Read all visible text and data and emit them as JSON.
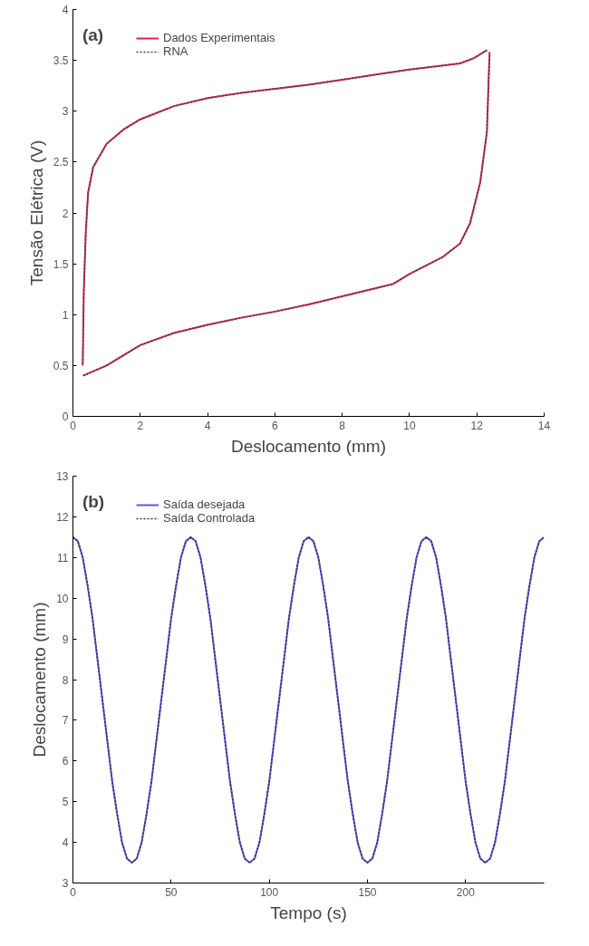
{
  "chart_data": [
    {
      "type": "line",
      "title": "(a)",
      "xlabel": "Deslocamento (mm)",
      "ylabel": "Tensão Elétrica (V)",
      "xlim": [
        0,
        14
      ],
      "xticks": [
        0,
        2,
        4,
        6,
        8,
        10,
        12,
        14
      ],
      "ylim": [
        0,
        4
      ],
      "yticks": [
        0,
        0.5,
        1,
        1.5,
        2,
        2.5,
        3,
        3.5,
        4
      ],
      "grid": false,
      "legend": "top left",
      "series": [
        {
          "name": "Dados Experimentais",
          "color": "#e0204a",
          "line_style": "solid",
          "x": [
            0.3,
            1,
            2,
            3,
            4,
            5,
            6,
            7,
            8,
            9,
            9.5,
            10,
            11,
            11.5,
            11.8,
            12.1,
            12.3,
            12.35,
            12.38
          ],
          "values": [
            0.4,
            0.5,
            0.7,
            0.82,
            0.9,
            0.97,
            1.03,
            1.1,
            1.18,
            1.26,
            1.3,
            1.4,
            1.57,
            1.7,
            1.9,
            2.3,
            2.8,
            3.3,
            3.58
          ]
        },
        {
          "color": "#e0204a",
          "line_style": "solid",
          "x": [
            12.3,
            11.9,
            11.5,
            11,
            10,
            9,
            8,
            7,
            6,
            5,
            4,
            3,
            2,
            1.5,
            1,
            0.6,
            0.45,
            0.38,
            0.32,
            0.3,
            0.29
          ],
          "values": [
            3.6,
            3.52,
            3.47,
            3.45,
            3.41,
            3.36,
            3.31,
            3.26,
            3.22,
            3.18,
            3.13,
            3.05,
            2.92,
            2.82,
            2.68,
            2.45,
            2.2,
            1.8,
            1.2,
            0.7,
            0.5
          ]
        },
        {
          "name": "RNA",
          "color": "#444444",
          "line_style": "dotted",
          "x": [
            0.3,
            1,
            2,
            3,
            4,
            5,
            6,
            7,
            8,
            9,
            9.5,
            10,
            11,
            11.5,
            11.8,
            12.1,
            12.3,
            12.35,
            12.38
          ],
          "values": [
            0.4,
            0.5,
            0.7,
            0.82,
            0.9,
            0.97,
            1.03,
            1.1,
            1.18,
            1.26,
            1.3,
            1.4,
            1.57,
            1.7,
            1.9,
            2.3,
            2.8,
            3.3,
            3.58
          ]
        },
        {
          "color": "#444444",
          "line_style": "dotted",
          "x": [
            12.3,
            11.9,
            11.5,
            11,
            10,
            9,
            8,
            7,
            6,
            5,
            4,
            3,
            2,
            1.5,
            1,
            0.6,
            0.45,
            0.38,
            0.32,
            0.3,
            0.29
          ],
          "values": [
            3.6,
            3.52,
            3.47,
            3.45,
            3.41,
            3.36,
            3.31,
            3.26,
            3.22,
            3.18,
            3.13,
            3.05,
            2.92,
            2.82,
            2.68,
            2.45,
            2.2,
            1.8,
            1.2,
            0.7,
            0.5
          ]
        }
      ]
    },
    {
      "type": "line",
      "title": "(b)",
      "xlabel": "Tempo (s)",
      "ylabel": "Deslocamento (mm)",
      "xlim": [
        0,
        240
      ],
      "xticks": [
        0,
        50,
        100,
        150,
        200
      ],
      "ylim": [
        3,
        13
      ],
      "yticks": [
        3,
        4,
        5,
        6,
        7,
        8,
        9,
        10,
        11,
        12,
        13
      ],
      "grid": false,
      "legend": "top left",
      "x": [
        0,
        2.5,
        5,
        7.5,
        10,
        12.5,
        15,
        17.5,
        20,
        22.5,
        25,
        27.5,
        30,
        32.5,
        35,
        37.5,
        40,
        42.5,
        45,
        47.5,
        50,
        52.5,
        55,
        57.5,
        60,
        62.5,
        65,
        67.5,
        70,
        72.5,
        75,
        77.5,
        80,
        82.5,
        85,
        87.5,
        90,
        92.5,
        95,
        97.5,
        100,
        102.5,
        105,
        107.5,
        110,
        112.5,
        115,
        117.5,
        120,
        122.5,
        125,
        127.5,
        130,
        132.5,
        135,
        137.5,
        140,
        142.5,
        145,
        147.5,
        150,
        152.5,
        155,
        157.5,
        160,
        162.5,
        165,
        167.5,
        170,
        172.5,
        175,
        177.5,
        180,
        182.5,
        185,
        187.5,
        190,
        192.5,
        195,
        197.5,
        200,
        202.5,
        205,
        207.5,
        210,
        212.5,
        215,
        217.5,
        220,
        222.5,
        225,
        227.5,
        230,
        232.5,
        235,
        237.5,
        240
      ],
      "series": [
        {
          "name": "Saída desejada",
          "color": "#6a50d8",
          "line_style": "solid",
          "values": [
            11.5,
            11.4,
            11.0,
            10.3,
            9.5,
            8.5,
            7.5,
            6.5,
            5.5,
            4.7,
            4.0,
            3.6,
            3.5,
            3.6,
            4.0,
            4.7,
            5.5,
            6.5,
            7.5,
            8.5,
            9.5,
            10.3,
            11.0,
            11.4,
            11.5,
            11.4,
            11.0,
            10.3,
            9.5,
            8.5,
            7.5,
            6.5,
            5.5,
            4.7,
            4.0,
            3.6,
            3.5,
            3.6,
            4.0,
            4.7,
            5.5,
            6.5,
            7.5,
            8.5,
            9.5,
            10.3,
            11.0,
            11.4,
            11.5,
            11.4,
            11.0,
            10.3,
            9.5,
            8.5,
            7.5,
            6.5,
            5.5,
            4.7,
            4.0,
            3.6,
            3.5,
            3.6,
            4.0,
            4.7,
            5.5,
            6.5,
            7.5,
            8.5,
            9.5,
            10.3,
            11.0,
            11.4,
            11.5,
            11.4,
            11.0,
            10.3,
            9.5,
            8.5,
            7.5,
            6.5,
            5.5,
            4.7,
            4.0,
            3.6,
            3.5,
            3.6,
            4.0,
            4.7,
            5.5,
            6.5,
            7.5,
            8.5,
            9.5,
            10.3,
            11.0,
            11.4,
            11.5
          ]
        },
        {
          "name": "Saída Controlada",
          "color": "#333355",
          "line_style": "dotted",
          "values": [
            11.5,
            11.4,
            11.0,
            10.3,
            9.5,
            8.5,
            7.5,
            6.5,
            5.5,
            4.7,
            4.0,
            3.6,
            3.5,
            3.6,
            4.0,
            4.7,
            5.5,
            6.5,
            7.5,
            8.5,
            9.5,
            10.3,
            11.0,
            11.4,
            11.5,
            11.4,
            11.0,
            10.3,
            9.5,
            8.5,
            7.5,
            6.5,
            5.5,
            4.7,
            4.0,
            3.6,
            3.5,
            3.6,
            4.0,
            4.7,
            5.5,
            6.5,
            7.5,
            8.5,
            9.5,
            10.3,
            11.0,
            11.4,
            11.5,
            11.4,
            11.0,
            10.3,
            9.5,
            8.5,
            7.5,
            6.5,
            5.5,
            4.7,
            4.0,
            3.6,
            3.5,
            3.6,
            4.0,
            4.7,
            5.5,
            6.5,
            7.5,
            8.5,
            9.5,
            10.3,
            11.0,
            11.4,
            11.5,
            11.4,
            11.0,
            10.3,
            9.5,
            8.5,
            7.5,
            6.5,
            5.5,
            4.7,
            4.0,
            3.6,
            3.5,
            3.6,
            4.0,
            4.7,
            5.5,
            6.5,
            7.5,
            8.5,
            9.5,
            10.3,
            11.0,
            11.4,
            11.5
          ]
        }
      ]
    }
  ]
}
